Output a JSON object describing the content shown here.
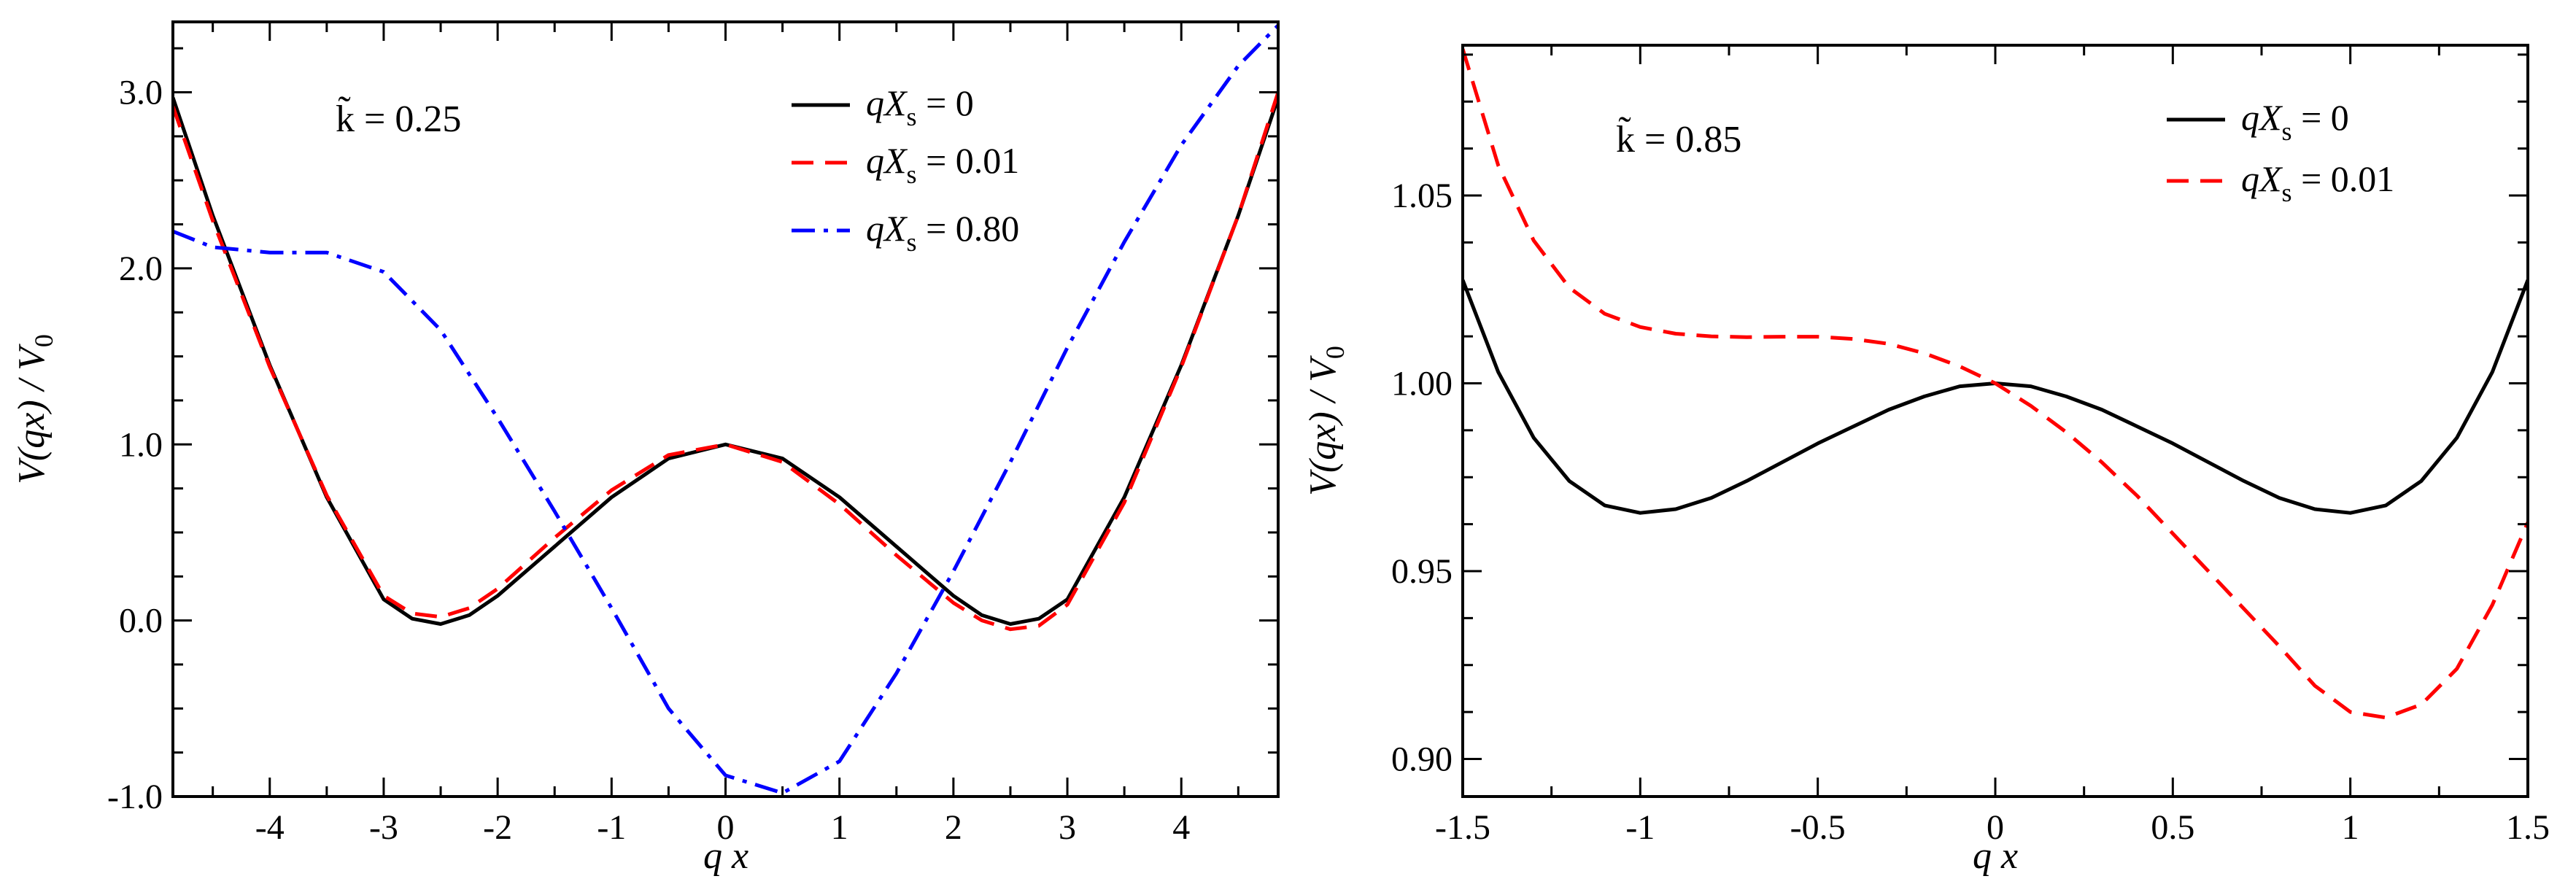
{
  "chart_data": [
    {
      "type": "line",
      "panel": "left",
      "xlabel": "q x",
      "ylabel": "V(qx) / V0",
      "xlim": [
        -4.85,
        4.85
      ],
      "ylim": [
        -1.0,
        3.4
      ],
      "x_ticks": [
        -4,
        -3,
        -2,
        -1,
        0,
        1,
        2,
        3,
        4
      ],
      "x_tick_labels": [
        "-4",
        "-3",
        "-2",
        "-1",
        "0",
        "1",
        "2",
        "3",
        "4"
      ],
      "y_ticks": [
        -1.0,
        0.0,
        1.0,
        2.0,
        3.0
      ],
      "y_tick_labels": [
        "-1.0",
        "0.0",
        "1.0",
        "2.0",
        "3.0"
      ],
      "annotation": "k̃ = 0.25",
      "legend_position": "top-right",
      "series": [
        {
          "name": "qXs = 0",
          "legend_prefix": "qX",
          "legend_sub": "s",
          "legend_suffix": " = 0",
          "color": "#000000",
          "dash": "solid",
          "x": [
            -4.85,
            -4.5,
            -4.0,
            -3.5,
            -3.0,
            -2.75,
            -2.5,
            -2.25,
            -2.0,
            -1.5,
            -1.0,
            -0.5,
            0.0,
            0.5,
            1.0,
            1.5,
            2.0,
            2.25,
            2.5,
            2.75,
            3.0,
            3.5,
            4.0,
            4.5,
            4.85
          ],
          "y": [
            2.97,
            2.3,
            1.45,
            0.7,
            0.12,
            0.01,
            -0.02,
            0.03,
            0.14,
            0.42,
            0.7,
            0.92,
            1.0,
            0.92,
            0.7,
            0.42,
            0.14,
            0.03,
            -0.02,
            0.01,
            0.12,
            0.7,
            1.45,
            2.3,
            2.97
          ]
        },
        {
          "name": "qXs = 0.01",
          "legend_prefix": "qX",
          "legend_sub": "s",
          "legend_suffix": " = 0.01",
          "color": "#ff0000",
          "dash": "dashed",
          "x": [
            -4.85,
            -4.5,
            -4.0,
            -3.5,
            -3.0,
            -2.75,
            -2.5,
            -2.25,
            -2.0,
            -1.5,
            -1.0,
            -0.5,
            0.0,
            0.5,
            1.0,
            1.5,
            2.0,
            2.25,
            2.5,
            2.75,
            3.0,
            3.5,
            4.0,
            4.5,
            4.85
          ],
          "y": [
            2.92,
            2.27,
            1.44,
            0.71,
            0.14,
            0.04,
            0.02,
            0.07,
            0.18,
            0.47,
            0.74,
            0.94,
            1.0,
            0.9,
            0.66,
            0.37,
            0.1,
            0.0,
            -0.05,
            -0.03,
            0.09,
            0.67,
            1.44,
            2.3,
            3.0
          ]
        },
        {
          "name": "qXs = 0.80",
          "legend_prefix": "qX",
          "legend_sub": "s",
          "legend_suffix": " = 0.80",
          "color": "#0000ff",
          "dash": "dashdot",
          "x": [
            -4.85,
            -4.5,
            -4.0,
            -3.5,
            -3.0,
            -2.5,
            -2.0,
            -1.5,
            -1.0,
            -0.5,
            0.0,
            0.5,
            1.0,
            1.5,
            2.0,
            2.5,
            3.0,
            3.5,
            4.0,
            4.5,
            4.85
          ],
          "y": [
            2.21,
            2.12,
            2.09,
            2.09,
            1.98,
            1.65,
            1.15,
            0.62,
            0.07,
            -0.5,
            -0.88,
            -0.98,
            -0.8,
            -0.3,
            0.28,
            0.9,
            1.55,
            2.15,
            2.7,
            3.15,
            3.38
          ]
        }
      ]
    },
    {
      "type": "line",
      "panel": "right",
      "xlabel": "q x",
      "ylabel": "V(qx) / V0",
      "xlim": [
        -1.5,
        1.5
      ],
      "ylim": [
        0.89,
        1.09
      ],
      "x_ticks": [
        -1.5,
        -1.0,
        -0.5,
        0.0,
        0.5,
        1.0,
        1.5
      ],
      "x_tick_labels": [
        "-1.5",
        "-1",
        "-0.5",
        "0",
        "0.5",
        "1",
        "1.5"
      ],
      "y_ticks": [
        0.9,
        0.95,
        1.0,
        1.05
      ],
      "y_tick_labels": [
        "0.90",
        "0.95",
        "1.00",
        "1.05"
      ],
      "annotation": "k̃ = 0.85",
      "legend_position": "top-right",
      "series": [
        {
          "name": "qXs = 0",
          "legend_prefix": "qX",
          "legend_sub": "s",
          "legend_suffix": " = 0",
          "color": "#000000",
          "dash": "solid",
          "x": [
            -1.5,
            -1.4,
            -1.3,
            -1.2,
            -1.1,
            -1.0,
            -0.9,
            -0.8,
            -0.7,
            -0.6,
            -0.5,
            -0.4,
            -0.3,
            -0.2,
            -0.1,
            0.0,
            0.1,
            0.2,
            0.3,
            0.4,
            0.5,
            0.6,
            0.7,
            0.8,
            0.9,
            1.0,
            1.1,
            1.2,
            1.3,
            1.4,
            1.5
          ],
          "y": [
            1.0275,
            1.003,
            0.9855,
            0.974,
            0.9675,
            0.9655,
            0.9665,
            0.9695,
            0.974,
            0.979,
            0.984,
            0.9885,
            0.993,
            0.9965,
            0.9992,
            1.0,
            0.9992,
            0.9965,
            0.993,
            0.9885,
            0.984,
            0.979,
            0.974,
            0.9695,
            0.9665,
            0.9655,
            0.9675,
            0.974,
            0.9855,
            1.003,
            1.0275
          ]
        },
        {
          "name": "qXs = 0.01",
          "legend_prefix": "qX",
          "legend_sub": "s",
          "legend_suffix": " = 0.01",
          "color": "#ff0000",
          "dash": "dashed",
          "x": [
            -1.5,
            -1.4,
            -1.3,
            -1.2,
            -1.1,
            -1.0,
            -0.9,
            -0.8,
            -0.7,
            -0.6,
            -0.5,
            -0.4,
            -0.3,
            -0.2,
            -0.1,
            0.0,
            0.1,
            0.2,
            0.3,
            0.4,
            0.5,
            0.6,
            0.7,
            0.8,
            0.9,
            1.0,
            1.1,
            1.2,
            1.3,
            1.4,
            1.5
          ],
          "y": [
            1.089,
            1.058,
            1.038,
            1.0255,
            1.0185,
            1.015,
            1.0132,
            1.0125,
            1.0123,
            1.0124,
            1.0124,
            1.0118,
            1.0105,
            1.008,
            1.0045,
            1.0,
            0.994,
            0.987,
            0.979,
            0.97,
            0.96,
            0.95,
            0.94,
            0.93,
            0.9195,
            0.9125,
            0.911,
            0.9145,
            0.924,
            0.941,
            0.963
          ]
        }
      ]
    }
  ]
}
